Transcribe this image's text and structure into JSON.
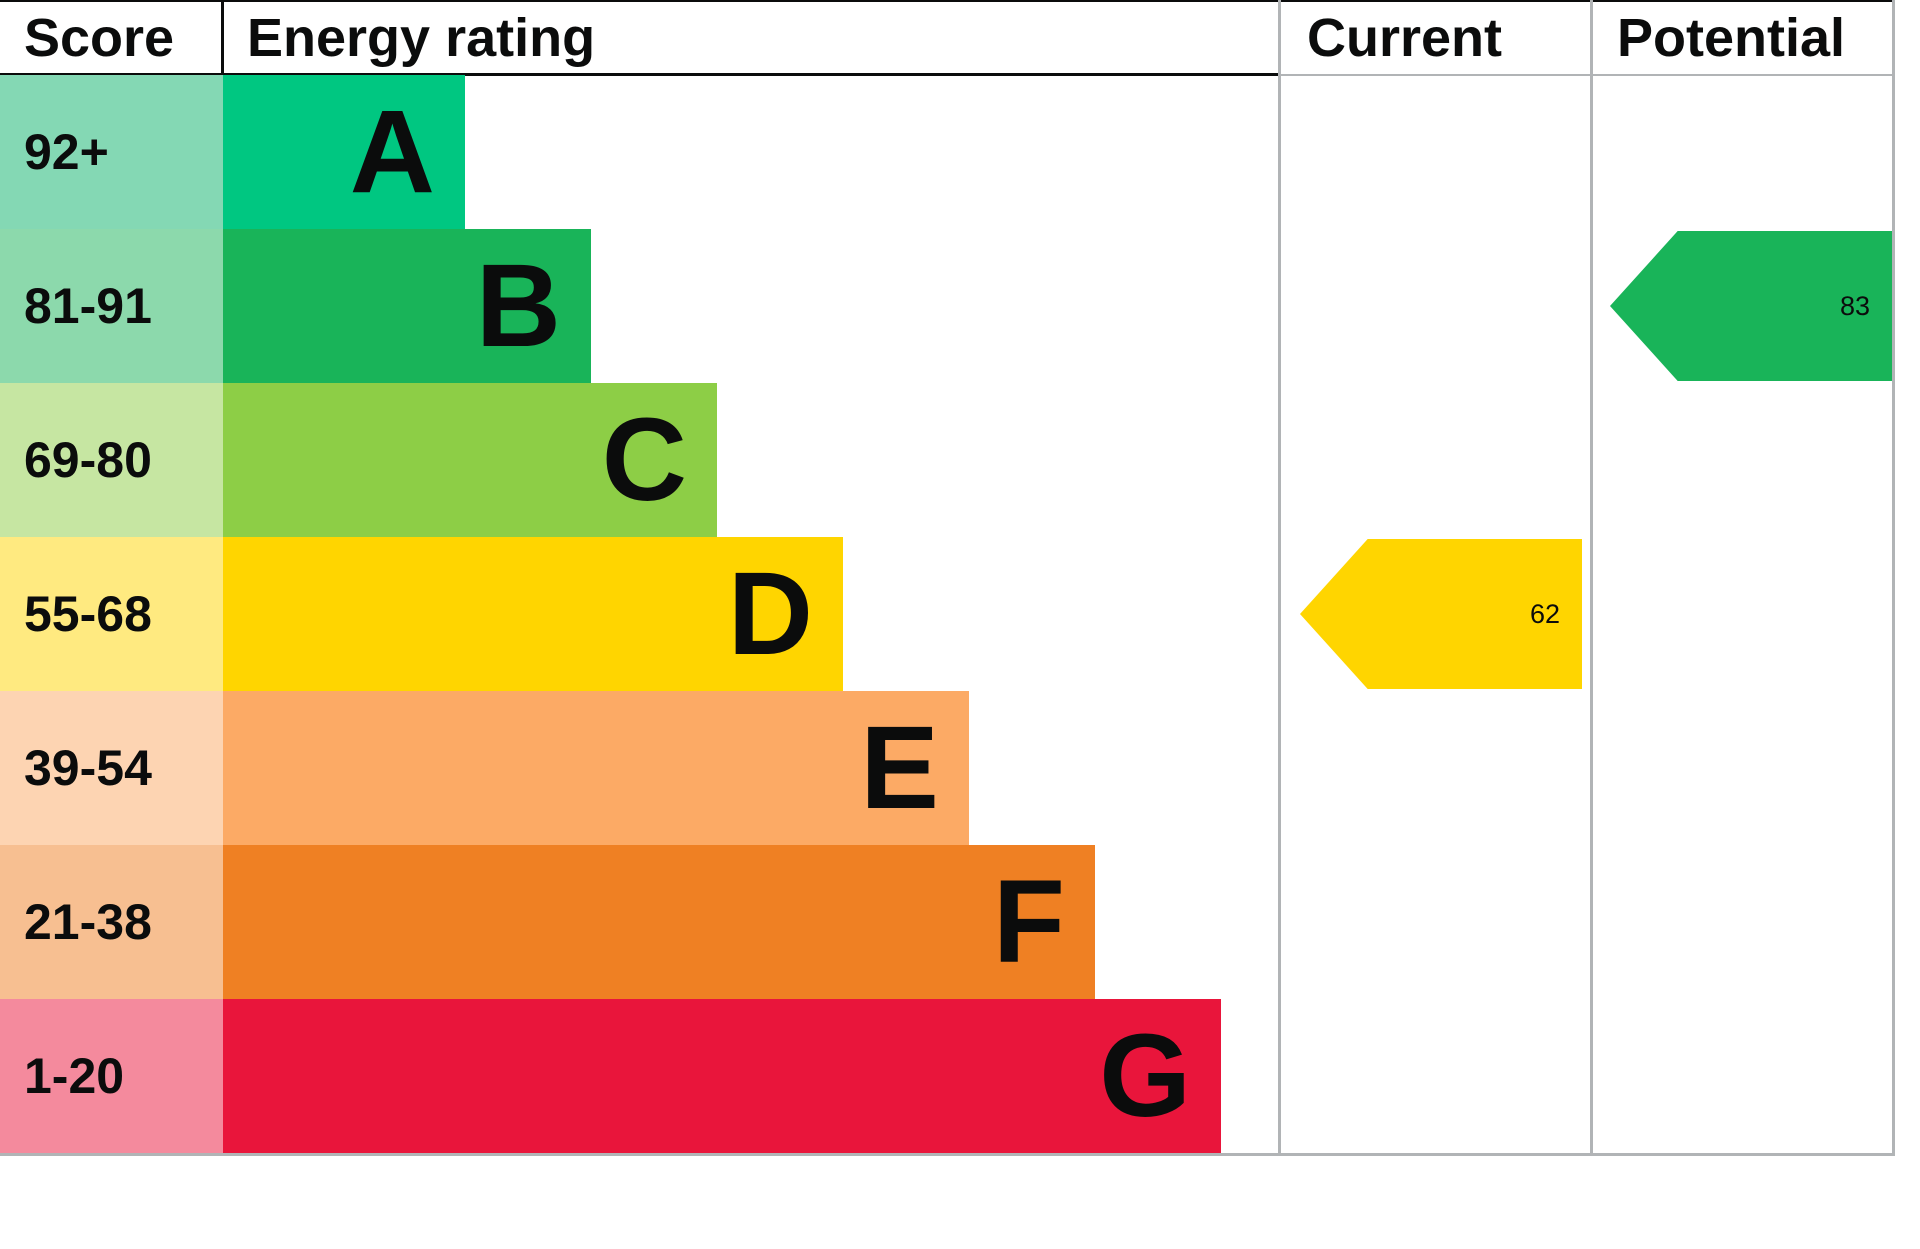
{
  "header": {
    "score": "Score",
    "rating": "Energy rating",
    "current": "Current",
    "potential": "Potential"
  },
  "bands": [
    {
      "score": "92+",
      "letter": "A",
      "color": "#00c781",
      "tint": "#84d8b4"
    },
    {
      "score": "81-91",
      "letter": "B",
      "color": "#19b459",
      "tint": "#8cd9ac"
    },
    {
      "score": "69-80",
      "letter": "C",
      "color": "#8dce46",
      "tint": "#c6e6a2"
    },
    {
      "score": "55-68",
      "letter": "D",
      "color": "#ffd500",
      "tint": "#ffea80"
    },
    {
      "score": "39-54",
      "letter": "E",
      "color": "#fcaa65",
      "tint": "#fdd4b2"
    },
    {
      "score": "21-38",
      "letter": "F",
      "color": "#ef8023",
      "tint": "#f7bf91"
    },
    {
      "score": "1-20",
      "letter": "G",
      "color": "#e9153b",
      "tint": "#f48a9d"
    }
  ],
  "markers": {
    "current": {
      "value": "62",
      "band": "D",
      "row": 3,
      "color": "#ffd500"
    },
    "potential": {
      "value": "83",
      "band": "B",
      "row": 1,
      "color": "#19b459"
    }
  },
  "chart_data": {
    "type": "bar",
    "title": "",
    "categories": [
      "A",
      "B",
      "C",
      "D",
      "E",
      "F",
      "G"
    ],
    "band_ranges": [
      "92+",
      "81-91",
      "69-80",
      "55-68",
      "39-54",
      "21-38",
      "1-20"
    ],
    "band_colors": [
      "#00c781",
      "#19b459",
      "#8dce46",
      "#ffd500",
      "#fcaa65",
      "#ef8023",
      "#e9153b"
    ],
    "columns": [
      "Score",
      "Energy rating",
      "Current",
      "Potential"
    ],
    "current": {
      "value": 62,
      "band": "D"
    },
    "potential": {
      "value": 83,
      "band": "B"
    },
    "legend_position": "none",
    "grid": false
  }
}
